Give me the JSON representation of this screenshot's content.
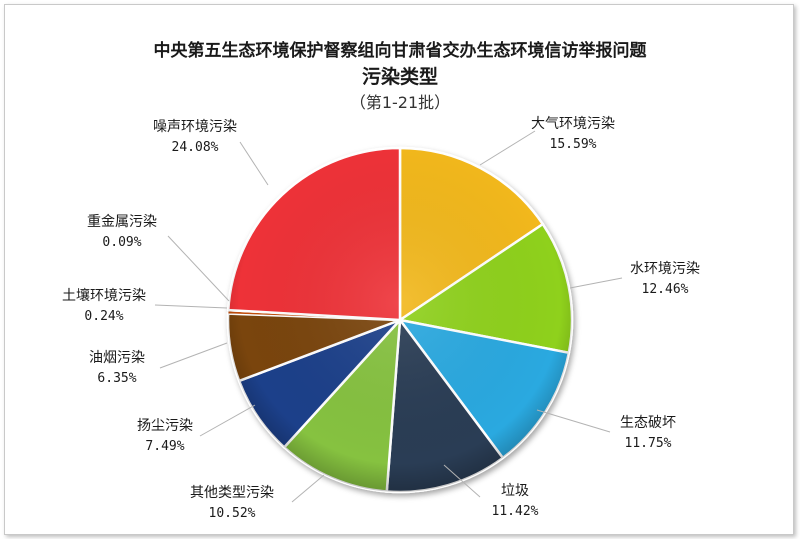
{
  "chart_data": {
    "type": "pie",
    "title": "中央第五生态环境保护督察组向甘肃省交办生态环境信访举报问题",
    "subtitle": "污染类型",
    "note": "（第1-21批）",
    "categories": [
      "大气环境污染",
      "水环境污染",
      "生态破坏",
      "垃圾",
      "其他类型污染",
      "扬尘污染",
      "油烟污染",
      "土壤环境污染",
      "重金属污染",
      "噪声环境污染"
    ],
    "values": [
      15.59,
      12.46,
      11.75,
      11.42,
      10.52,
      7.49,
      6.35,
      0.24,
      0.09,
      24.08
    ],
    "value_labels": [
      "15.59%",
      "12.46%",
      "11.75%",
      "11.42%",
      "10.52%",
      "7.49%",
      "6.35%",
      "0.24%",
      "0.09%",
      "24.08%"
    ],
    "colors": [
      "#f2b81e",
      "#8fd11f",
      "#29a9e0",
      "#2c3e55",
      "#86c23f",
      "#1d3f8a",
      "#7a4410",
      "#c25010",
      "#8a2a2a",
      "#ee3038"
    ],
    "legend": "none"
  }
}
